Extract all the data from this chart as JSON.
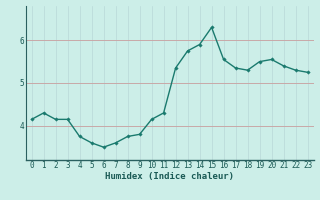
{
  "x_values": [
    0,
    1,
    2,
    3,
    4,
    5,
    6,
    7,
    8,
    9,
    10,
    11,
    12,
    13,
    14,
    15,
    16,
    17,
    18,
    19,
    20,
    21,
    22,
    23
  ],
  "y_values": [
    4.15,
    4.3,
    4.15,
    4.15,
    3.75,
    3.6,
    3.5,
    3.6,
    3.75,
    3.8,
    4.15,
    4.3,
    5.35,
    5.75,
    5.9,
    6.3,
    5.55,
    5.35,
    5.3,
    5.5,
    5.55,
    5.4,
    5.3,
    5.25
  ],
  "line_color": "#1a7a6e",
  "marker": "D",
  "marker_size": 1.8,
  "bg_color": "#cceee8",
  "grid_color_h": "#c8a8a8",
  "grid_color_v": "#b8d8d8",
  "xlabel": "Humidex (Indice chaleur)",
  "ylim": [
    3.2,
    6.8
  ],
  "yticks": [
    4,
    5,
    6
  ],
  "xlim": [
    -0.5,
    23.5
  ],
  "xticks": [
    0,
    1,
    2,
    3,
    4,
    5,
    6,
    7,
    8,
    9,
    10,
    11,
    12,
    13,
    14,
    15,
    16,
    17,
    18,
    19,
    20,
    21,
    22,
    23
  ],
  "xlabel_fontsize": 6.5,
  "tick_fontsize": 5.5,
  "line_width": 1.0
}
